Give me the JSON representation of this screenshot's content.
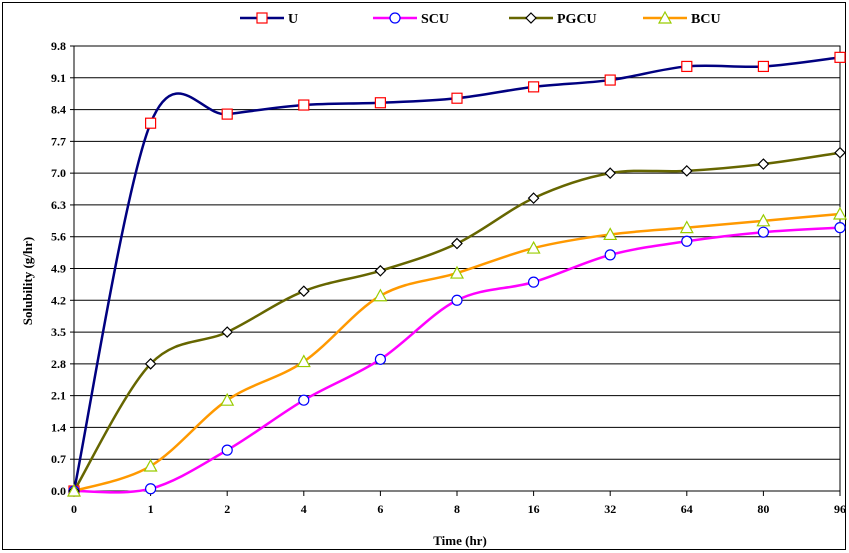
{
  "chart_data": {
    "type": "line",
    "title": "",
    "xlabel": "Time (hr)",
    "ylabel": "Solubility (g/hr)",
    "categories": [
      "0",
      "1",
      "2",
      "4",
      "6",
      "8",
      "16",
      "32",
      "64",
      "80",
      "96"
    ],
    "yticks": [
      "0.0",
      "0.7",
      "1.4",
      "2.1",
      "2.8",
      "3.5",
      "4.2",
      "4.9",
      "5.6",
      "6.3",
      "7.0",
      "7.7",
      "8.4",
      "9.1",
      "9.8"
    ],
    "ylim": [
      0,
      9.8
    ],
    "grid": "horizontal",
    "legend_position": "top",
    "series": [
      {
        "name": "U",
        "color": "#000080",
        "marker_color": "#ff0000",
        "marker": "square",
        "values": [
          0.0,
          8.1,
          8.3,
          8.5,
          8.55,
          8.65,
          8.9,
          9.05,
          9.35,
          9.35,
          9.55
        ]
      },
      {
        "name": "SCU",
        "color": "#ff00ff",
        "marker_color": "#0000ff",
        "marker": "circle",
        "values": [
          0.0,
          0.05,
          0.9,
          2.0,
          2.9,
          4.2,
          4.6,
          5.2,
          5.5,
          5.7,
          5.8
        ]
      },
      {
        "name": "PGCU",
        "color": "#666600",
        "marker_color": "#000000",
        "marker": "diamond",
        "values": [
          0.0,
          2.8,
          3.5,
          4.4,
          4.85,
          5.45,
          6.45,
          7.0,
          7.05,
          7.2,
          7.45
        ]
      },
      {
        "name": "BCU",
        "color": "#ff9900",
        "marker_color": "#99cc00",
        "marker": "triangle",
        "values": [
          0.0,
          0.55,
          2.0,
          2.85,
          4.3,
          4.8,
          5.35,
          5.65,
          5.8,
          5.95,
          6.1
        ]
      }
    ]
  }
}
